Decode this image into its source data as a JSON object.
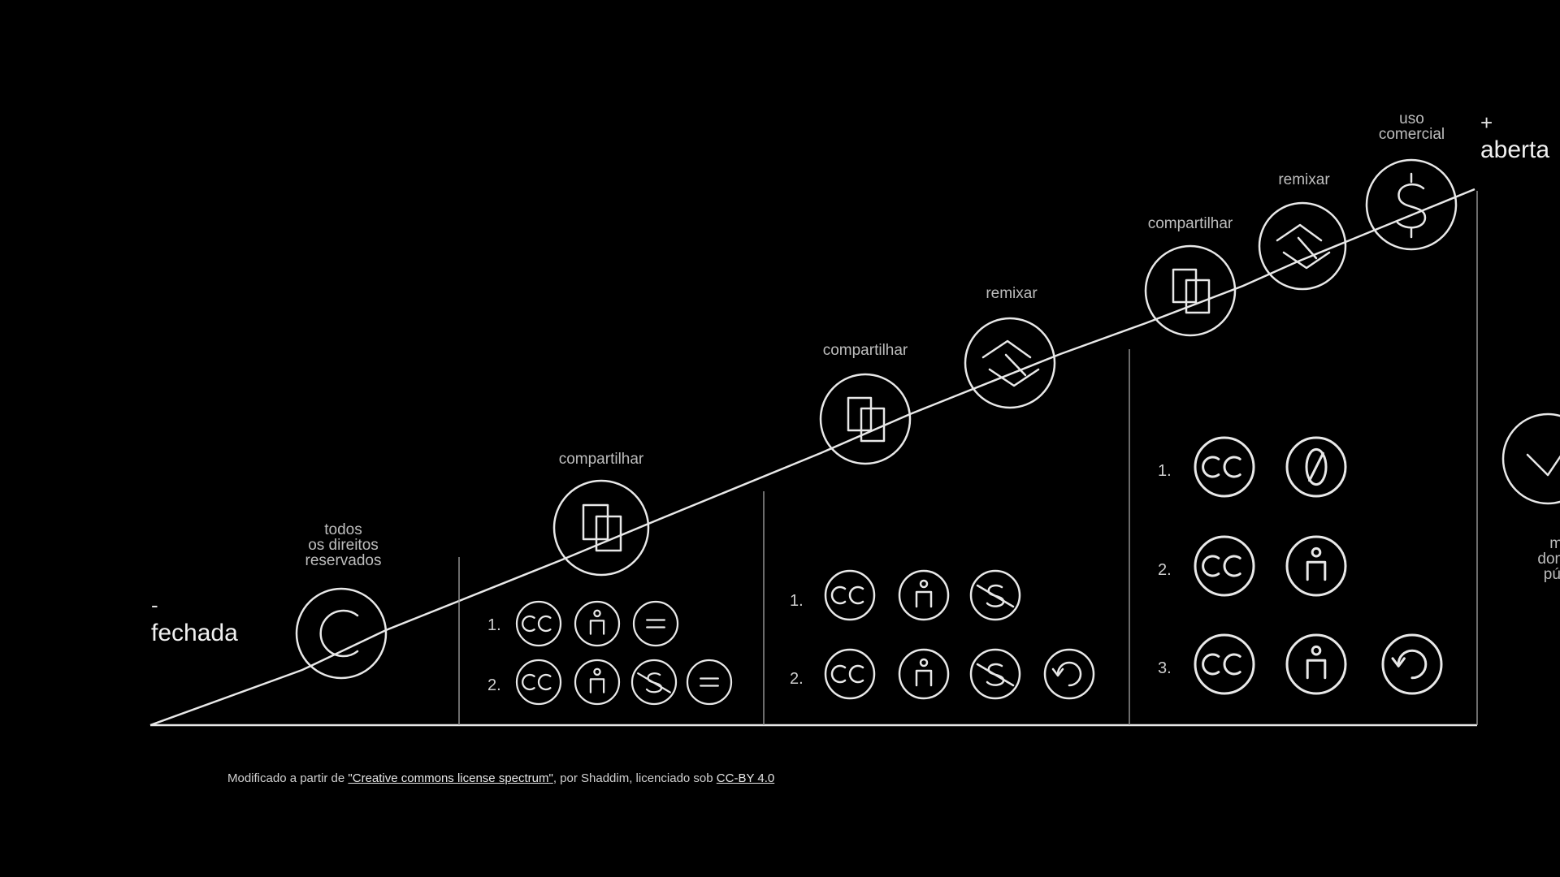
{
  "left_end": {
    "sign": "-",
    "label": "fechada"
  },
  "right_end": {
    "sign": "+",
    "label": "aberta"
  },
  "labels": {
    "all_rights": [
      "todos",
      "os direitos",
      "reservados"
    ],
    "share": "compartilhar",
    "remix": "remixar",
    "commercial": [
      "uso",
      "comercial"
    ],
    "public_domain": [
      "marca",
      "domínio",
      "público"
    ]
  },
  "row_numbers": [
    "1.",
    "2.",
    "3."
  ],
  "footer": {
    "prefix": "Modificado a partir de ",
    "source_link": "\"Creative commons license spectrum\"",
    "middle": ", por Shaddim, licenciado sob ",
    "license_link": "CC-BY 4.0"
  },
  "icons": {
    "copyright": "copyright-icon",
    "share": "share-icon",
    "remix": "remix-icon",
    "commercial": "dollar-icon",
    "cc": "cc-icon",
    "by": "attribution-icon",
    "nd": "no-derivatives-icon",
    "nc": "non-commercial-icon",
    "sa": "share-alike-icon",
    "zero": "cc-zero-icon",
    "pd": "public-domain-icon"
  },
  "colors": {
    "background": "#000000",
    "line": "#e8e8e8"
  }
}
